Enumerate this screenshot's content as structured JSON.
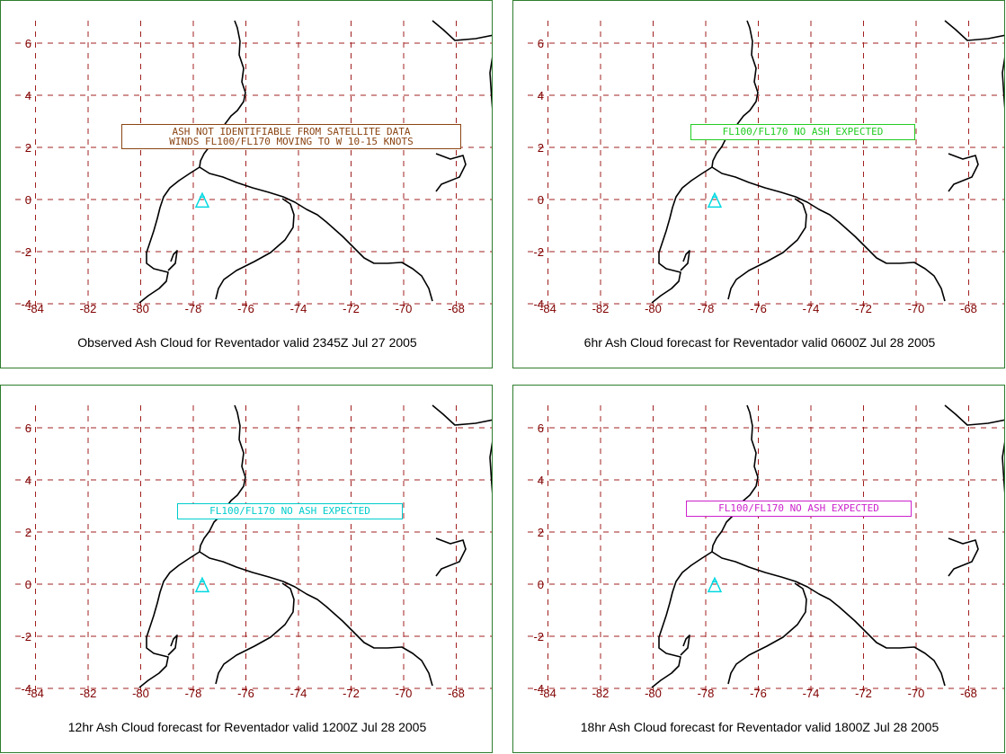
{
  "map": {
    "lon_ticks": [
      "-84",
      "-82",
      "-80",
      "-78",
      "-76",
      "-74",
      "-72",
      "-70",
      "-68"
    ],
    "lat_ticks": [
      "6",
      "4",
      "2",
      "0",
      "-2",
      "-4"
    ],
    "grid_color": "#a02020",
    "tick_color": "#800000",
    "coast_color": "#000000",
    "volcano_color": "#00d8e0",
    "volcano_marker": "volcano-icon"
  },
  "panels": [
    {
      "caption": "Observed Ash Cloud for Reventador valid 2345Z Jul 27 2005",
      "note_lines": [
        "ASH NOT IDENTIFIABLE FROM SATELLITE DATA",
        "WINDS FL100/FL170 MOVING TO W 10-15 KNOTS"
      ],
      "note_color": "#8b4513"
    },
    {
      "caption": "6hr Ash Cloud forecast for Reventador valid 0600Z Jul 28 2005",
      "note_lines": [
        "FL100/FL170 NO ASH EXPECTED"
      ],
      "note_color": "#22cc22"
    },
    {
      "caption": "12hr Ash Cloud forecast for Reventador valid 1200Z Jul 28 2005",
      "note_lines": [
        "FL100/FL170 NO ASH EXPECTED"
      ],
      "note_color": "#00cccc"
    },
    {
      "caption": "18hr Ash Cloud forecast for Reventador valid 1800Z Jul 28 2005",
      "note_lines": [
        "FL100/FL170 NO ASH EXPECTED"
      ],
      "note_color": "#cc22cc"
    }
  ]
}
